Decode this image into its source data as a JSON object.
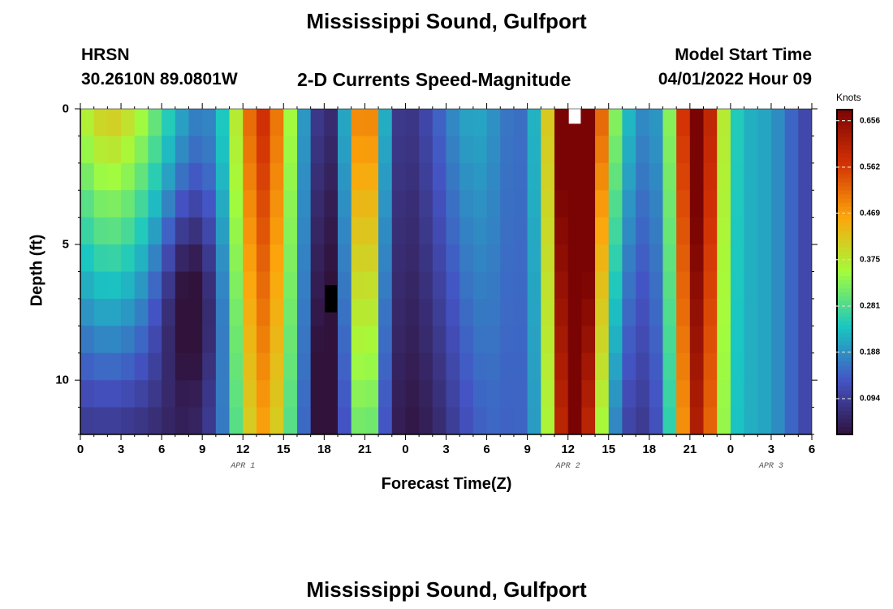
{
  "page": {
    "title": "Mississippi Sound, Gulfport",
    "station": "HRSN",
    "coords": "30.2610N  89.0801W",
    "product": "2-D Currents Speed-Magnitude",
    "model_label": "Model Start Time",
    "model_time": "04/01/2022 Hour 09",
    "footer_title": "Mississippi Sound, Gulfport"
  },
  "chart_data": {
    "type": "heatmap",
    "title": "2-D Currents Speed-Magnitude",
    "xlabel": "Forecast Time(Z)",
    "ylabel": "Depth (ft)",
    "colorbar_label": "Knots",
    "x_hours_from_start": [
      0,
      54
    ],
    "x_tick_labels": [
      "0",
      "3",
      "6",
      "9",
      "12",
      "15",
      "18",
      "21",
      "0",
      "3",
      "6",
      "9",
      "12",
      "15",
      "18",
      "21",
      "0",
      "3",
      "6"
    ],
    "date_labels": [
      {
        "text": "APR 1",
        "hour": 12
      },
      {
        "text": "APR 2",
        "hour": 36
      },
      {
        "text": "APR 3",
        "hour": 51
      }
    ],
    "ylim": [
      0,
      12
    ],
    "y_tick_labels": [
      "0",
      "5",
      "10"
    ],
    "y_ticks": [
      0,
      5,
      10
    ],
    "colorbar_ticks": [
      "0.656",
      "0.562",
      "0.469",
      "0.375",
      "0.281",
      "0.188",
      "0.094"
    ],
    "colorbar_tick_values": [
      0.656,
      0.562,
      0.469,
      0.375,
      0.281,
      0.188,
      0.094
    ],
    "vmin": 0.02,
    "vmax": 0.68,
    "time_columns": 54,
    "depth_levels": 12,
    "description": "Current speed magnitude (knots) by depth and forecast hour; strong tidal pulses near hours 11-16, 20-23, 35-38 and 44-47"
  },
  "colors": {
    "scale": [
      "#30123b",
      "#4454c4",
      "#1ac7c2",
      "#a4fc3c",
      "#fca60c",
      "#d23105",
      "#7a0403"
    ]
  }
}
